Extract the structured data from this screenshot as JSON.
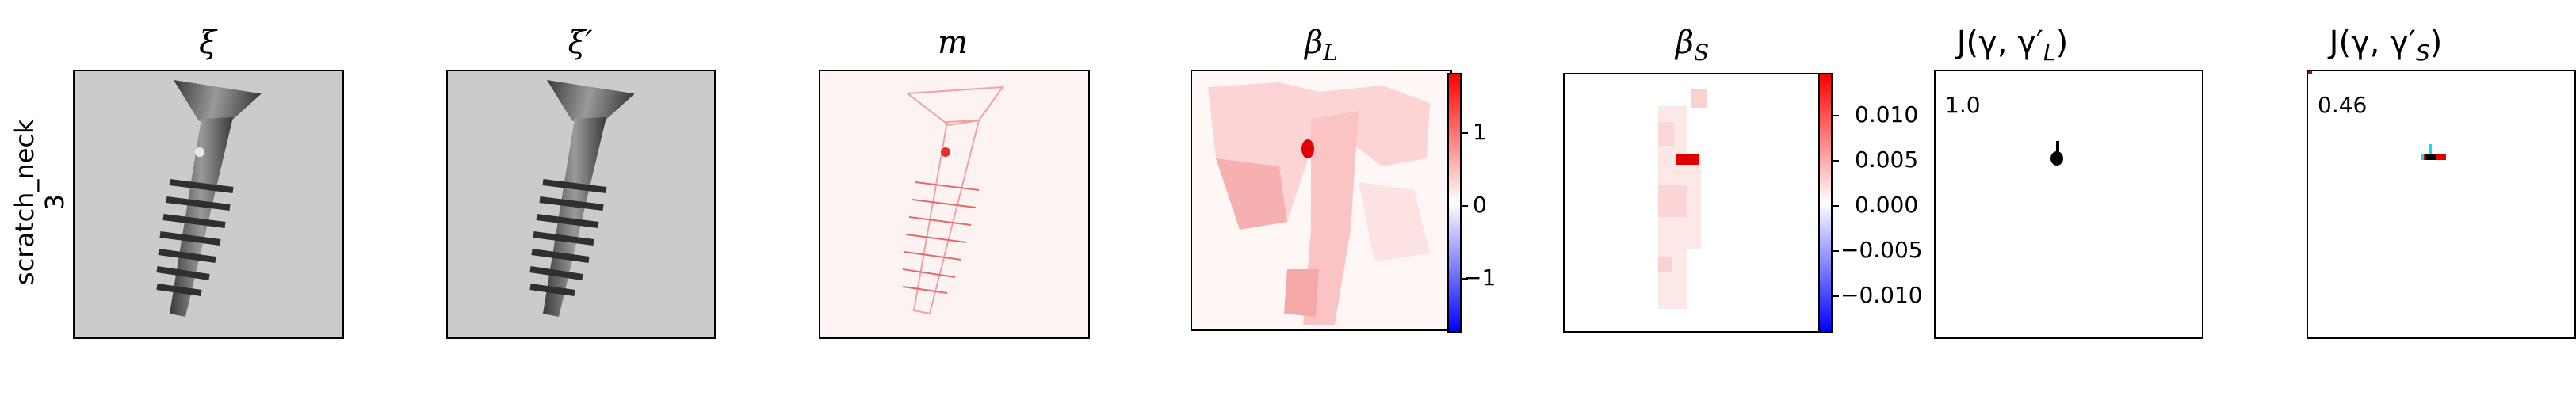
{
  "row": {
    "label_line1": "scratch_neck",
    "label_line2": "3"
  },
  "panels": [
    {
      "key": "xi",
      "title": "ξ"
    },
    {
      "key": "xi_prime",
      "title": "ξ′"
    },
    {
      "key": "m",
      "title": "m"
    },
    {
      "key": "beta_l",
      "title_main": "β",
      "title_sub": "L"
    },
    {
      "key": "beta_s",
      "title_main": "β",
      "title_sub": "S"
    },
    {
      "key": "j_l",
      "title": "J(γ, γ′",
      "title_sub": "L",
      "title_end": ")"
    },
    {
      "key": "j_s",
      "title": "J(γ, γ′",
      "title_sub": "S",
      "title_end": ")"
    }
  ],
  "colorbars": {
    "beta_l": {
      "ticks": [
        "1",
        "0",
        "−1"
      ]
    },
    "beta_s": {
      "ticks": [
        "0.010",
        "0.005",
        "0.000",
        "−0.005",
        "−0.010"
      ]
    }
  },
  "scores": {
    "j_l": "1.0",
    "j_s": "0.46"
  },
  "colors": {
    "positive": "#ff0000",
    "negative": "#0000ff",
    "screw": "#555555",
    "background_gray": "#c8c8c8",
    "cyan": "#00e5e5"
  }
}
